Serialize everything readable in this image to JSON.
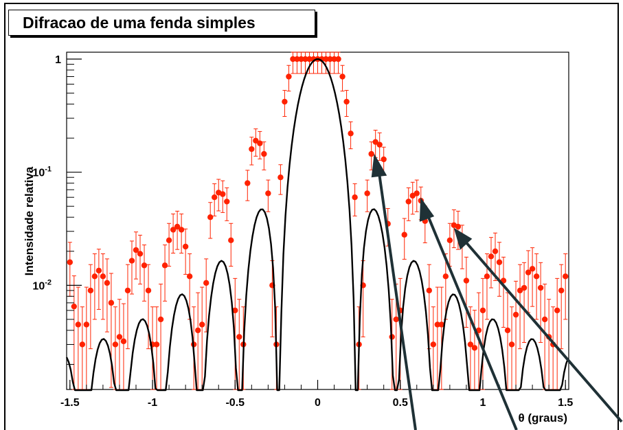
{
  "chart_data": {
    "type": "scatter",
    "title": "Difracao de uma fenda simples",
    "xlabel": "θ (graus)",
    "ylabel": "Intensidade relativa",
    "xlim": [
      -1.52,
      1.52
    ],
    "ylim": [
      0.0012,
      1.15
    ],
    "yscale": "log",
    "grid": false,
    "legend": "none",
    "x_ticks": [
      {
        "value": -1.5,
        "label": "-1.5"
      },
      {
        "value": -1,
        "label": "-1"
      },
      {
        "value": -0.5,
        "label": "-0.5"
      },
      {
        "value": 0,
        "label": "0"
      },
      {
        "value": 0.5,
        "label": "0.5"
      },
      {
        "value": 1,
        "label": "1"
      },
      {
        "value": 1.5,
        "label": "1.5"
      }
    ],
    "y_ticks": [
      {
        "value": 1,
        "base": "1",
        "exp": ""
      },
      {
        "value": 0.1,
        "base": "10",
        "exp": "-1"
      },
      {
        "value": 0.01,
        "base": "10",
        "exp": "-2"
      }
    ],
    "model": {
      "function": "sinc^2",
      "zero_spacing_deg": 0.2367,
      "peak_value": 1.0,
      "line_color": "#000000"
    },
    "series": [
      {
        "marker_color": "#ff2200",
        "x": [
          -1.5,
          -1.475,
          -1.45,
          -1.425,
          -1.4,
          -1.375,
          -1.35,
          -1.325,
          -1.3,
          -1.275,
          -1.25,
          -1.225,
          -1.2,
          -1.175,
          -1.15,
          -1.125,
          -1.1,
          -1.075,
          -1.05,
          -1.025,
          -1.0,
          -0.975,
          -0.95,
          -0.925,
          -0.9,
          -0.875,
          -0.85,
          -0.825,
          -0.8,
          -0.775,
          -0.75,
          -0.725,
          -0.7,
          -0.675,
          -0.65,
          -0.625,
          -0.6,
          -0.575,
          -0.55,
          -0.525,
          -0.5,
          -0.475,
          -0.45,
          -0.425,
          -0.4,
          -0.375,
          -0.35,
          -0.325,
          -0.3,
          -0.275,
          -0.25,
          -0.225,
          -0.2,
          -0.175,
          -0.15,
          -0.125,
          -0.1,
          -0.075,
          -0.05,
          -0.025,
          0.0,
          0.025,
          0.05,
          0.075,
          0.1,
          0.125,
          0.15,
          0.175,
          0.2,
          0.225,
          0.25,
          0.275,
          0.3,
          0.325,
          0.35,
          0.375,
          0.4,
          0.425,
          0.45,
          0.475,
          0.5,
          0.525,
          0.55,
          0.575,
          0.6,
          0.625,
          0.65,
          0.675,
          0.7,
          0.725,
          0.75,
          0.775,
          0.8,
          0.825,
          0.85,
          0.875,
          0.9,
          0.925,
          0.95,
          0.975,
          1.0,
          1.025,
          1.05,
          1.075,
          1.1,
          1.125,
          1.15,
          1.175,
          1.2,
          1.225,
          1.25,
          1.275,
          1.3,
          1.325,
          1.35,
          1.375,
          1.4,
          1.425,
          1.45,
          1.475,
          1.5
        ],
        "y": [
          0.016,
          0.0065,
          0.0045,
          0.003,
          0.0045,
          0.009,
          0.012,
          0.0135,
          0.012,
          0.0105,
          0.007,
          0.003,
          0.0035,
          0.0032,
          0.009,
          0.0165,
          0.0205,
          0.019,
          0.015,
          0.009,
          0.003,
          0.003,
          0.005,
          0.015,
          0.025,
          0.031,
          0.033,
          0.031,
          0.022,
          0.012,
          0.003,
          0.004,
          0.0045,
          0.0105,
          0.04,
          0.06,
          0.066,
          0.064,
          0.055,
          0.025,
          0.006,
          0.0035,
          0.003,
          0.08,
          0.16,
          0.19,
          0.18,
          0.145,
          0.065,
          0.01,
          0.003,
          0.09,
          0.42,
          0.7,
          1.0,
          1.0,
          1.0,
          1.0,
          1.0,
          1.0,
          1.0,
          1.0,
          1.0,
          1.0,
          1.0,
          1.0,
          0.7,
          0.42,
          0.22,
          0.06,
          0.003,
          0.01,
          0.065,
          0.145,
          0.185,
          0.175,
          0.13,
          0.035,
          0.0035,
          0.005,
          0.006,
          0.028,
          0.055,
          0.062,
          0.065,
          0.056,
          0.037,
          0.009,
          0.003,
          0.0045,
          0.0045,
          0.012,
          0.025,
          0.034,
          0.033,
          0.024,
          0.011,
          0.003,
          0.0028,
          0.004,
          0.006,
          0.012,
          0.018,
          0.02,
          0.016,
          0.011,
          0.004,
          0.003,
          0.0055,
          0.009,
          0.0095,
          0.013,
          0.014,
          0.012,
          0.0095,
          0.005,
          0.0035,
          0.003,
          0.006,
          0.009,
          0.012
        ]
      }
    ]
  }
}
